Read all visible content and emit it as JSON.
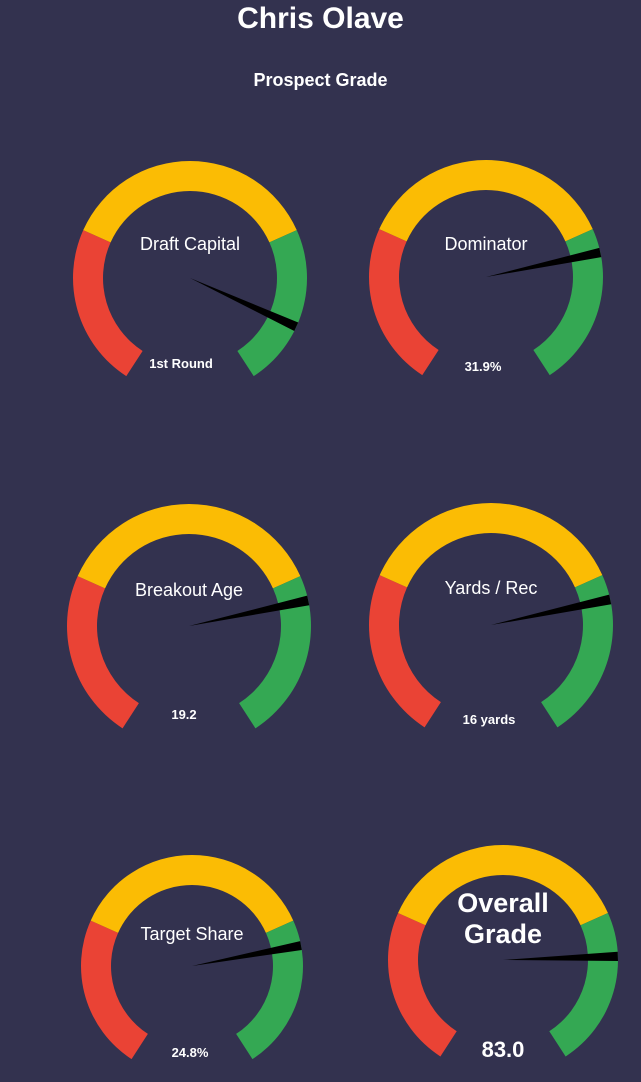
{
  "title": "Chris Olave",
  "subtitle": "Prospect Grade",
  "colors": {
    "background": "#33324f",
    "red": "#ea4335",
    "yellow": "#fbbc04",
    "green": "#34a853",
    "needle": "#000000"
  },
  "chart_data": {
    "type": "gauge",
    "band_fractions": {
      "red": [
        0,
        0.276
      ],
      "yellow": [
        0.276,
        0.724
      ],
      "green": [
        0.724,
        1
      ]
    },
    "gauges": [
      {
        "label": "Draft Capital",
        "value_text": "1st Round",
        "needle_fraction": 0.89
      },
      {
        "label": "Dominator",
        "value_text": "31.9%",
        "needle_fraction": 0.765
      },
      {
        "label": "Breakout Age",
        "value_text": "19.2",
        "needle_fraction": 0.765
      },
      {
        "label": "Yards / Rec",
        "value_text": "16 yards",
        "needle_fraction": 0.765
      },
      {
        "label": "Target Share",
        "value_text": "24.8%",
        "needle_fraction": 0.77
      },
      {
        "label": "Overall Grade",
        "value_text": "83.0",
        "needle_fraction": 0.8
      }
    ]
  }
}
